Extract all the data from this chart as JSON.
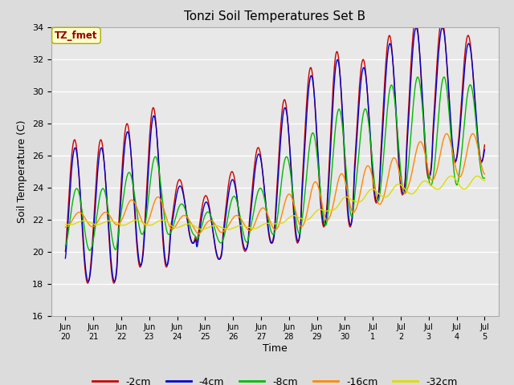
{
  "title": "Tonzi Soil Temperatures Set B",
  "xlabel": "Time",
  "ylabel": "Soil Temperature (C)",
  "ylim": [
    16,
    34
  ],
  "bg_color": "#dcdcdc",
  "plot_bg": "#e8e8e8",
  "legend_label": "TZ_fmet",
  "series_colors": {
    "-2cm": "#cc0000",
    "-4cm": "#0000cc",
    "-8cm": "#00bb00",
    "-16cm": "#ff8800",
    "-32cm": "#dddd00"
  },
  "xtick_labels": [
    "Jun\n20",
    "Jun\n21",
    "Jun\n22",
    "Jun\n23",
    "Jun\n24",
    "Jun\n25",
    "Jun\n26",
    "Jun\n27",
    "Jun\n28",
    "Jun\n29",
    "Jun\n30",
    "Jul\n1",
    "Jul\n2",
    "Jul\n3",
    "Jul\n4",
    "Jul\n5"
  ],
  "ytick_vals": [
    16,
    18,
    20,
    22,
    24,
    26,
    28,
    30,
    32,
    34
  ],
  "figsize": [
    6.4,
    4.8
  ],
  "dpi": 100
}
